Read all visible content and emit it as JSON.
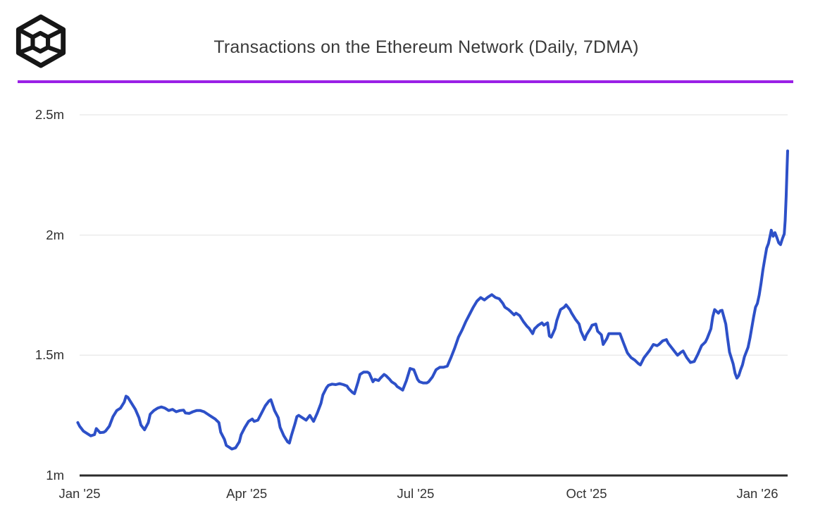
{
  "header": {
    "title": "Transactions on the Ethereum Network (Daily, 7DMA)",
    "logo_icon": "wireframe-cube-logo",
    "divider_color": "#9a20e6"
  },
  "chart_data": {
    "type": "line",
    "title": "Transactions on the Ethereum Network (Daily, 7DMA)",
    "unit": "millions of transactions per day (7-day moving average)",
    "line_color": "#2d50c8",
    "background": "#ffffff",
    "grid": true,
    "legend": "none",
    "y_axis": {
      "range": [
        1.0,
        2.5
      ],
      "ticks": [
        {
          "v": 1.0,
          "label": "1m"
        },
        {
          "v": 1.5,
          "label": "1.5m"
        },
        {
          "v": 2.0,
          "label": "2m"
        },
        {
          "v": 2.5,
          "label": "2.5m"
        }
      ]
    },
    "x_axis": {
      "unit": "days since 2025-01-01",
      "ticks": [
        {
          "d": 0,
          "label": "Jan '25"
        },
        {
          "d": 90,
          "label": "Apr '25"
        },
        {
          "d": 181,
          "label": "Jul '25"
        },
        {
          "d": 273,
          "label": "Oct '25"
        },
        {
          "d": 365,
          "label": "Jan '26"
        }
      ]
    },
    "points_format": [
      "days_since_2025_01_01",
      "transactions_millions"
    ],
    "points": [
      [
        -1,
        1.22
      ],
      [
        0,
        1.205
      ],
      [
        2,
        1.185
      ],
      [
        4,
        1.175
      ],
      [
        6,
        1.165
      ],
      [
        8,
        1.17
      ],
      [
        9,
        1.195
      ],
      [
        11,
        1.178
      ],
      [
        13,
        1.18
      ],
      [
        14,
        1.185
      ],
      [
        16,
        1.205
      ],
      [
        18,
        1.245
      ],
      [
        20,
        1.27
      ],
      [
        22,
        1.28
      ],
      [
        24,
        1.305
      ],
      [
        25,
        1.33
      ],
      [
        26,
        1.325
      ],
      [
        28,
        1.3
      ],
      [
        30,
        1.275
      ],
      [
        32,
        1.24
      ],
      [
        33,
        1.21
      ],
      [
        35,
        1.19
      ],
      [
        37,
        1.22
      ],
      [
        38,
        1.255
      ],
      [
        40,
        1.27
      ],
      [
        42,
        1.28
      ],
      [
        44,
        1.285
      ],
      [
        46,
        1.28
      ],
      [
        48,
        1.27
      ],
      [
        50,
        1.275
      ],
      [
        52,
        1.265
      ],
      [
        54,
        1.27
      ],
      [
        56,
        1.272
      ],
      [
        57,
        1.26
      ],
      [
        59,
        1.258
      ],
      [
        61,
        1.265
      ],
      [
        63,
        1.27
      ],
      [
        65,
        1.27
      ],
      [
        67,
        1.265
      ],
      [
        69,
        1.255
      ],
      [
        71,
        1.245
      ],
      [
        73,
        1.235
      ],
      [
        75,
        1.22
      ],
      [
        76,
        1.18
      ],
      [
        78,
        1.15
      ],
      [
        79,
        1.125
      ],
      [
        81,
        1.115
      ],
      [
        82,
        1.11
      ],
      [
        84,
        1.115
      ],
      [
        86,
        1.14
      ],
      [
        87,
        1.17
      ],
      [
        89,
        1.2
      ],
      [
        91,
        1.225
      ],
      [
        93,
        1.235
      ],
      [
        94,
        1.225
      ],
      [
        96,
        1.23
      ],
      [
        98,
        1.26
      ],
      [
        100,
        1.29
      ],
      [
        102,
        1.31
      ],
      [
        103,
        1.315
      ],
      [
        105,
        1.27
      ],
      [
        107,
        1.24
      ],
      [
        108,
        1.2
      ],
      [
        110,
        1.165
      ],
      [
        112,
        1.14
      ],
      [
        113,
        1.135
      ],
      [
        114,
        1.165
      ],
      [
        115,
        1.19
      ],
      [
        116,
        1.215
      ],
      [
        117,
        1.245
      ],
      [
        118,
        1.25
      ],
      [
        120,
        1.24
      ],
      [
        122,
        1.23
      ],
      [
        124,
        1.25
      ],
      [
        126,
        1.225
      ],
      [
        128,
        1.26
      ],
      [
        130,
        1.3
      ],
      [
        131,
        1.335
      ],
      [
        132,
        1.35
      ],
      [
        133,
        1.365
      ],
      [
        134,
        1.375
      ],
      [
        136,
        1.38
      ],
      [
        138,
        1.378
      ],
      [
        140,
        1.382
      ],
      [
        142,
        1.378
      ],
      [
        144,
        1.372
      ],
      [
        145,
        1.36
      ],
      [
        147,
        1.345
      ],
      [
        148,
        1.34
      ],
      [
        150,
        1.39
      ],
      [
        151,
        1.42
      ],
      [
        153,
        1.43
      ],
      [
        155,
        1.43
      ],
      [
        156,
        1.425
      ],
      [
        158,
        1.39
      ],
      [
        159,
        1.4
      ],
      [
        161,
        1.395
      ],
      [
        162,
        1.405
      ],
      [
        164,
        1.42
      ],
      [
        165,
        1.415
      ],
      [
        167,
        1.4
      ],
      [
        168,
        1.39
      ],
      [
        170,
        1.38
      ],
      [
        171,
        1.37
      ],
      [
        173,
        1.36
      ],
      [
        174,
        1.355
      ],
      [
        176,
        1.395
      ],
      [
        178,
        1.445
      ],
      [
        180,
        1.44
      ],
      [
        182,
        1.4
      ],
      [
        183,
        1.39
      ],
      [
        185,
        1.385
      ],
      [
        187,
        1.385
      ],
      [
        188,
        1.39
      ],
      [
        190,
        1.41
      ],
      [
        192,
        1.44
      ],
      [
        194,
        1.45
      ],
      [
        196,
        1.45
      ],
      [
        198,
        1.455
      ],
      [
        200,
        1.49
      ],
      [
        202,
        1.53
      ],
      [
        204,
        1.575
      ],
      [
        206,
        1.605
      ],
      [
        208,
        1.64
      ],
      [
        210,
        1.67
      ],
      [
        212,
        1.7
      ],
      [
        214,
        1.725
      ],
      [
        216,
        1.74
      ],
      [
        218,
        1.73
      ],
      [
        220,
        1.742
      ],
      [
        222,
        1.752
      ],
      [
        224,
        1.74
      ],
      [
        226,
        1.735
      ],
      [
        228,
        1.715
      ],
      [
        229,
        1.7
      ],
      [
        231,
        1.69
      ],
      [
        232,
        1.683
      ],
      [
        234,
        1.668
      ],
      [
        235,
        1.675
      ],
      [
        237,
        1.665
      ],
      [
        239,
        1.64
      ],
      [
        241,
        1.62
      ],
      [
        242,
        1.613
      ],
      [
        244,
        1.59
      ],
      [
        245,
        1.61
      ],
      [
        247,
        1.625
      ],
      [
        249,
        1.635
      ],
      [
        250,
        1.625
      ],
      [
        252,
        1.635
      ],
      [
        253,
        1.58
      ],
      [
        254,
        1.575
      ],
      [
        256,
        1.61
      ],
      [
        257,
        1.645
      ],
      [
        259,
        1.69
      ],
      [
        261,
        1.7
      ],
      [
        262,
        1.71
      ],
      [
        264,
        1.69
      ],
      [
        265,
        1.675
      ],
      [
        267,
        1.65
      ],
      [
        269,
        1.63
      ],
      [
        270,
        1.6
      ],
      [
        272,
        1.565
      ],
      [
        273,
        1.585
      ],
      [
        275,
        1.61
      ],
      [
        276,
        1.625
      ],
      [
        278,
        1.63
      ],
      [
        279,
        1.6
      ],
      [
        281,
        1.585
      ],
      [
        282,
        1.545
      ],
      [
        284,
        1.57
      ],
      [
        285,
        1.59
      ],
      [
        287,
        1.59
      ],
      [
        289,
        1.59
      ],
      [
        291,
        1.59
      ],
      [
        293,
        1.55
      ],
      [
        295,
        1.51
      ],
      [
        297,
        1.49
      ],
      [
        299,
        1.48
      ],
      [
        301,
        1.465
      ],
      [
        302,
        1.46
      ],
      [
        304,
        1.49
      ],
      [
        305,
        1.5
      ],
      [
        307,
        1.52
      ],
      [
        309,
        1.545
      ],
      [
        311,
        1.54
      ],
      [
        312,
        1.545
      ],
      [
        314,
        1.56
      ],
      [
        316,
        1.565
      ],
      [
        317,
        1.55
      ],
      [
        319,
        1.53
      ],
      [
        321,
        1.51
      ],
      [
        322,
        1.5
      ],
      [
        324,
        1.513
      ],
      [
        325,
        1.518
      ],
      [
        327,
        1.49
      ],
      [
        329,
        1.47
      ],
      [
        331,
        1.474
      ],
      [
        333,
        1.505
      ],
      [
        335,
        1.54
      ],
      [
        337,
        1.555
      ],
      [
        338,
        1.57
      ],
      [
        340,
        1.61
      ],
      [
        341,
        1.66
      ],
      [
        342,
        1.69
      ],
      [
        344,
        1.675
      ],
      [
        345,
        1.685
      ],
      [
        346,
        1.687
      ],
      [
        348,
        1.63
      ],
      [
        349,
        1.57
      ],
      [
        350,
        1.513
      ],
      [
        352,
        1.464
      ],
      [
        353,
        1.425
      ],
      [
        354,
        1.405
      ],
      [
        355,
        1.415
      ],
      [
        356,
        1.44
      ],
      [
        357,
        1.46
      ],
      [
        358,
        1.493
      ],
      [
        360,
        1.533
      ],
      [
        361,
        1.571
      ],
      [
        362,
        1.615
      ],
      [
        363,
        1.659
      ],
      [
        364,
        1.7
      ],
      [
        365,
        1.715
      ],
      [
        366,
        1.75
      ],
      [
        367,
        1.8
      ],
      [
        368,
        1.855
      ],
      [
        369,
        1.9
      ],
      [
        370,
        1.945
      ],
      [
        371,
        1.965
      ],
      [
        372,
        2.0
      ],
      [
        372.5,
        2.02
      ],
      [
        373.5,
        1.995
      ],
      [
        374.5,
        2.01
      ],
      [
        375.5,
        1.99
      ],
      [
        376.5,
        1.968
      ],
      [
        377.5,
        1.96
      ],
      [
        378.5,
        1.985
      ],
      [
        379.5,
        2.005
      ],
      [
        380,
        2.06
      ],
      [
        380.5,
        2.16
      ],
      [
        381,
        2.28
      ],
      [
        381.3,
        2.35
      ]
    ],
    "style": {
      "grid_color": "#ebebeb",
      "axis_color": "#2b2b2b",
      "label_color": "#2d2d2d",
      "title_color": "#3a3a3a"
    }
  }
}
